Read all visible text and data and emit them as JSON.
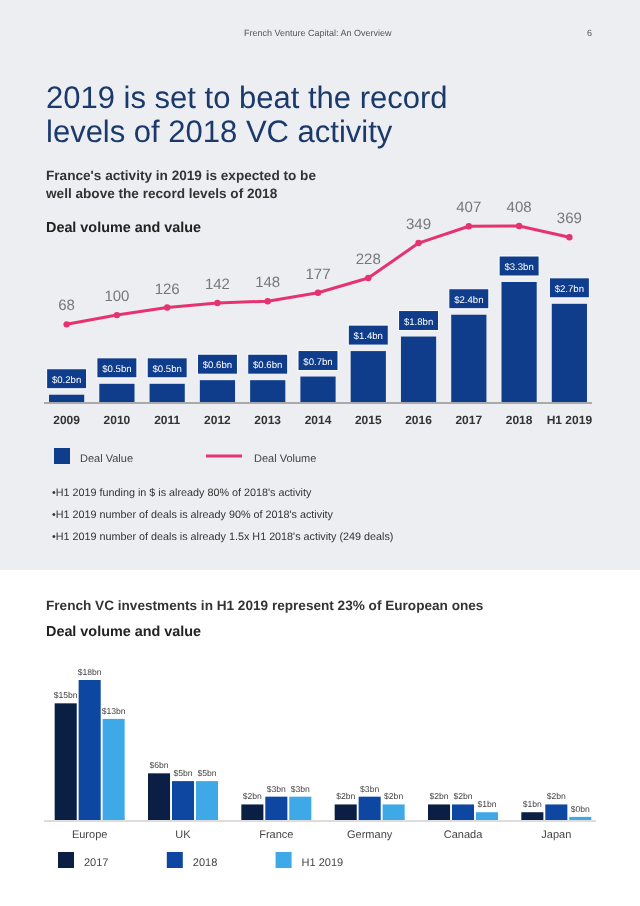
{
  "chart_data": [
    {
      "type": "bar",
      "title": "2019 is set to beat the record levels of 2018 VC activity",
      "subtitle": "France's activity in 2019 is expected to be well above the record levels of 2018",
      "annotations": [
        "French Venture Capital: An Overview",
        "6",
        "Deal volume and value",
        "•H1 2019 funding in $ is already 80% of 2018's activity",
        "•H1 2019 number of deals is already 90% of 2018's activity",
        "•H1 2019 number of deals is already 1.5x H1 2018's activity (249 deals)"
      ],
      "categories": [
        "2009",
        "2010",
        "2011",
        "2012",
        "2013",
        "2014",
        "2015",
        "2016",
        "2017",
        "2018",
        "H1 2019"
      ],
      "series": [
        {
          "name": "Deal Value",
          "color": "#0f3d8c",
          "values": [
            0.2,
            0.5,
            0.5,
            0.6,
            0.6,
            0.7,
            1.4,
            1.8,
            2.4,
            3.3,
            2.7
          ],
          "value_labels": [
            "$0.2bn",
            "$0.5bn",
            "$0.5bn",
            "$0.6bn",
            "$0.6bn",
            "$0.7bn",
            "$1.4bn",
            "$1.8bn",
            "$2.4bn",
            "$3.3bn",
            "$2.7bn"
          ]
        },
        {
          "name": "Deal Volume",
          "type": "line",
          "axis": "y2",
          "color": "#e6336f",
          "values": [
            68,
            100,
            126,
            142,
            148,
            177,
            228,
            349,
            407,
            408,
            369
          ]
        }
      ],
      "data_labels": true,
      "marker": "circle",
      "legend": "bottom"
    },
    {
      "type": "bar",
      "title": "French VC investments in H1 2019 represent 23% of European ones",
      "subtitle": "Deal volume and value",
      "categories": [
        "Europe",
        "UK",
        "France",
        "Germany",
        "Canada",
        "Japan"
      ],
      "series": [
        {
          "name": "2017",
          "color": "#0b1f45",
          "values": [
            15,
            6,
            2,
            2,
            2,
            1
          ],
          "value_labels": [
            "$15bn",
            "$6bn",
            "$2bn",
            "$2bn",
            "$2bn",
            "$1bn"
          ]
        },
        {
          "name": "2018",
          "color": "#0d47a1",
          "values": [
            18,
            5,
            3,
            3,
            2,
            2
          ],
          "value_labels": [
            "$18bn",
            "$5bn",
            "$3bn",
            "$3bn",
            "$2bn",
            "$2bn"
          ]
        },
        {
          "name": "H1 2019",
          "color": "#3fa9e8",
          "values": [
            13,
            5,
            3,
            2,
            1,
            0.4
          ],
          "value_labels": [
            "$13bn",
            "$5bn",
            "$3bn",
            "$2bn",
            "$1bn",
            "$0bn"
          ]
        }
      ],
      "legend": "bottom"
    }
  ]
}
